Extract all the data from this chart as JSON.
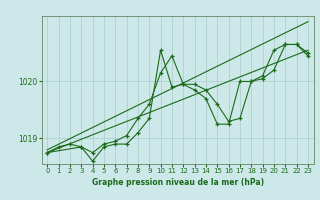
{
  "bg_color": "#cce8e8",
  "grid_color": "#aacccc",
  "line_color": "#1a6b1a",
  "marker_color": "#1a6b1a",
  "text_color": "#1a6b1a",
  "xlabel": "Graphe pression niveau de la mer (hPa)",
  "xlim": [
    -0.5,
    23.5
  ],
  "ylim": [
    1018.55,
    1021.15
  ],
  "yticks": [
    1019,
    1020
  ],
  "xticks": [
    0,
    1,
    2,
    3,
    4,
    5,
    6,
    7,
    8,
    9,
    10,
    11,
    12,
    13,
    14,
    15,
    16,
    17,
    18,
    19,
    20,
    21,
    22,
    23
  ],
  "series1": {
    "x": [
      0,
      1,
      2,
      3,
      4,
      5,
      6,
      7,
      8,
      9,
      10,
      11,
      12,
      13,
      14,
      15,
      16,
      17,
      18,
      19,
      20,
      21,
      22,
      23
    ],
    "y": [
      1018.75,
      1018.85,
      1018.9,
      1018.85,
      1018.75,
      1018.9,
      1018.95,
      1019.05,
      1019.35,
      1019.6,
      1020.15,
      1020.45,
      1019.95,
      1019.95,
      1019.85,
      1019.6,
      1019.3,
      1019.35,
      1020.0,
      1020.1,
      1020.55,
      1020.65,
      1020.65,
      1020.5
    ]
  },
  "series2": {
    "x": [
      0,
      3,
      4,
      5,
      6,
      7,
      8,
      9,
      10,
      11,
      12,
      13,
      14,
      15,
      16,
      17,
      18,
      19,
      20,
      21,
      22,
      23
    ],
    "y": [
      1018.75,
      1018.85,
      1018.6,
      1018.85,
      1018.9,
      1018.9,
      1019.1,
      1019.35,
      1020.55,
      1019.9,
      1019.95,
      1019.85,
      1019.7,
      1019.25,
      1019.25,
      1020.0,
      1020.0,
      1020.05,
      1020.2,
      1020.65,
      1020.65,
      1020.45
    ]
  },
  "trend1": {
    "x": [
      0,
      23
    ],
    "y": [
      1018.75,
      1020.55
    ]
  },
  "trend2": {
    "x": [
      0,
      23
    ],
    "y": [
      1018.8,
      1021.05
    ]
  }
}
